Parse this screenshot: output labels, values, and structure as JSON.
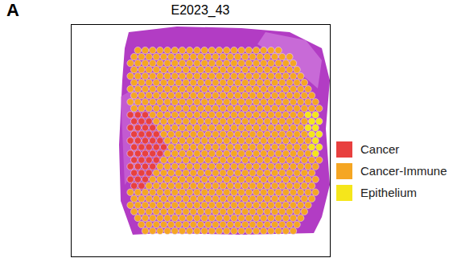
{
  "chart_data": {
    "type": "scatter",
    "panel_label": "A",
    "title": "E2023_43",
    "xlim": [
      0,
      35
    ],
    "ylim": [
      0,
      36
    ],
    "tick_labels": false,
    "grid": false,
    "legend": "right",
    "marker": "circle",
    "series": [
      {
        "name": "Cancer",
        "color": "#e8403f",
        "runs": [
          [
            14,
            8,
            10
          ],
          [
            15,
            8.5,
            10.5
          ],
          [
            16,
            8,
            11
          ],
          [
            17,
            8.5,
            11.5
          ],
          [
            18,
            8,
            12
          ],
          [
            19,
            8.5,
            12.5
          ],
          [
            20,
            8,
            12
          ],
          [
            21,
            8.5,
            11.5
          ],
          [
            22,
            8,
            11
          ],
          [
            23,
            8.5,
            10.5
          ],
          [
            24,
            8,
            10
          ],
          [
            25,
            8.5,
            9.5
          ]
        ]
      },
      {
        "name": "Cancer-Immune",
        "color": "#f5a623",
        "runs": [
          [
            4,
            9,
            28
          ],
          [
            5,
            8.5,
            29.5
          ],
          [
            6,
            8,
            30
          ],
          [
            7,
            8.5,
            30.5
          ],
          [
            8,
            8,
            31
          ],
          [
            9,
            8.5,
            31.5
          ],
          [
            10,
            8,
            32
          ],
          [
            11,
            8.5,
            32.5
          ],
          [
            12,
            8,
            33
          ],
          [
            13,
            8.5,
            33.5
          ],
          [
            14,
            11,
            31
          ],
          [
            15,
            11.5,
            31.5
          ],
          [
            16,
            12,
            31
          ],
          [
            17,
            12.5,
            31.5
          ],
          [
            18,
            13,
            32
          ],
          [
            19,
            13.5,
            31.5
          ],
          [
            20,
            13,
            32
          ],
          [
            21,
            12.5,
            33.5
          ],
          [
            22,
            12,
            33
          ],
          [
            23,
            11.5,
            32.5
          ],
          [
            24,
            11,
            33
          ],
          [
            25,
            10.5,
            32.5
          ],
          [
            26,
            8,
            33
          ],
          [
            27,
            8.5,
            32.5
          ],
          [
            28,
            8,
            32
          ],
          [
            29,
            8.5,
            31.5
          ],
          [
            30,
            9,
            31
          ],
          [
            31,
            9.5,
            30.5
          ],
          [
            32,
            10,
            30
          ]
        ]
      },
      {
        "name": "Epithelium",
        "color": "#f5e61b",
        "runs": [
          [
            14,
            32,
            33
          ],
          [
            15,
            32.5,
            33.5
          ],
          [
            16,
            32,
            33
          ],
          [
            17,
            32.5,
            33.5
          ],
          [
            18,
            33,
            33
          ],
          [
            19,
            32.5,
            33.5
          ],
          [
            20,
            33,
            33
          ]
        ]
      }
    ]
  }
}
